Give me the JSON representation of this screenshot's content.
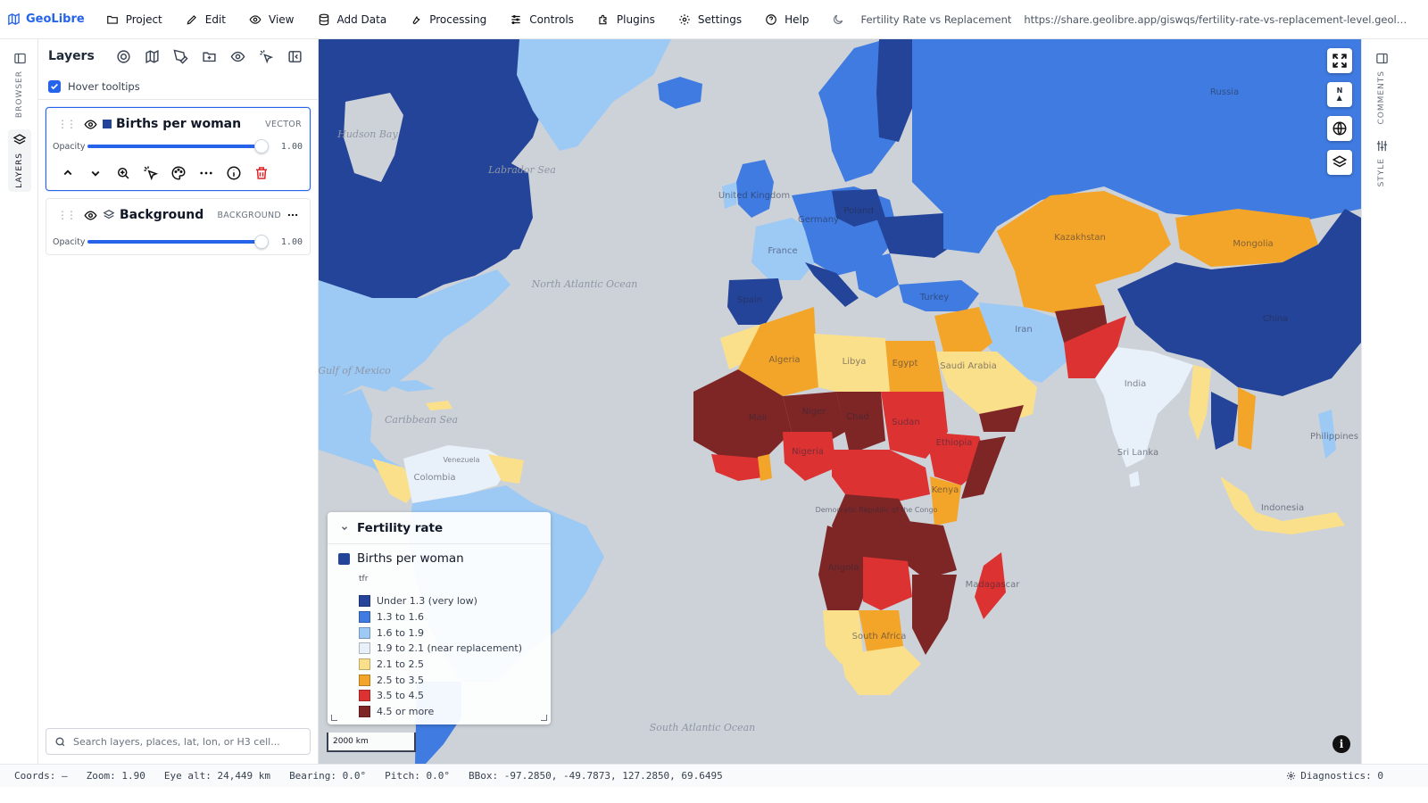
{
  "app": {
    "name": "GeoLibre"
  },
  "menu": [
    "Project",
    "Edit",
    "View",
    "Add Data",
    "Processing",
    "Controls",
    "Plugins",
    "Settings",
    "Help"
  ],
  "document": {
    "title": "Fertility Rate vs Replacement",
    "url": "https://share.geolibre.app/giswqs/fertility-rate-vs-replacement-level.geolibre.j..."
  },
  "left_rail": {
    "browser": "BROWSER",
    "layers": "LAYERS"
  },
  "right_rail": {
    "comments": "COMMENTS",
    "style": "STYLE"
  },
  "layers_panel": {
    "title": "Layers",
    "hover_tooltips": {
      "label": "Hover tooltips",
      "checked": true
    },
    "opacity_label": "Opacity",
    "layers": [
      {
        "name": "Births per woman",
        "type": "VECTOR",
        "opacity": "1.00",
        "color": "#24449a"
      },
      {
        "name": "Background",
        "type": "BACKGROUND",
        "opacity": "1.00"
      }
    ],
    "search_placeholder": "Search layers, places, lat, lon, or H3 cell..."
  },
  "map": {
    "ocean_labels": [
      "Hudson Bay",
      "Labrador Sea",
      "North Atlantic Ocean",
      "Gulf of Mexico",
      "Caribbean Sea",
      "South Atlantic Ocean"
    ],
    "country_labels": [
      "United Kingdom",
      "France",
      "Germany",
      "Poland",
      "Spain",
      "Turkey",
      "Russia",
      "Kazakhstan",
      "Mongolia",
      "China",
      "India",
      "Iran",
      "Egypt",
      "Libya",
      "Algeria",
      "Mali",
      "Niger",
      "Chad",
      "Sudan",
      "Nigeria",
      "Ethiopia",
      "Kenya",
      "Democratic Republic of the Congo",
      "Angola",
      "Madagascar",
      "South Africa",
      "Saudi Arabia",
      "Colombia",
      "Venezuela",
      "Philippines",
      "Indonesia",
      "Sri Lanka"
    ],
    "scale": "2000 km",
    "controls": [
      "fullscreen",
      "north",
      "globe",
      "layers"
    ]
  },
  "legend": {
    "title": "Fertility rate",
    "layer": "Births per woman",
    "field": "tfr",
    "items": [
      {
        "label": "Under 1.3 (very low)",
        "color": "#24449a"
      },
      {
        "label": "1.3 to 1.6",
        "color": "#3f7be0"
      },
      {
        "label": "1.6 to 1.9",
        "color": "#9dc9f5"
      },
      {
        "label": "1.9 to 2.1 (near replacement)",
        "color": "#e8f1f9"
      },
      {
        "label": "2.1 to 2.5",
        "color": "#fbe08c"
      },
      {
        "label": "2.5 to 3.5",
        "color": "#f3a52a"
      },
      {
        "label": "3.5 to 4.5",
        "color": "#dc3232"
      },
      {
        "label": "4.5 or more",
        "color": "#7e2626"
      }
    ]
  },
  "status": {
    "coords": "Coords: —",
    "zoom": "Zoom: 1.90",
    "eye_alt": "Eye alt: 24,449 km",
    "bearing": "Bearing: 0.0°",
    "pitch": "Pitch: 0.0°",
    "bbox": "BBox: -97.2850, -49.7873, 127.2850, 69.6495",
    "diagnostics": "Diagnostics: 0"
  },
  "colors": {
    "accent": "#2563eb",
    "ocean": "#cdd2d8",
    "danger": "#dc2626"
  }
}
